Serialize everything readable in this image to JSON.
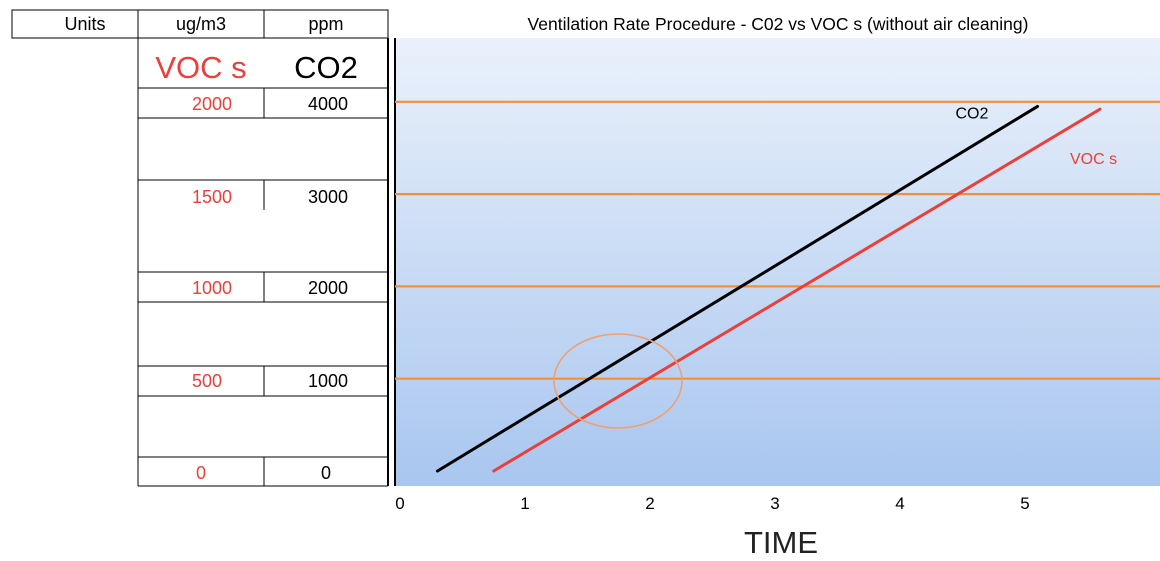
{
  "table": {
    "headers": [
      "Units",
      "ug/m3",
      "ppm"
    ],
    "voc_label": "VOC s",
    "co2_label": "CO2",
    "rows": [
      {
        "voc": "2000",
        "co2": "4000"
      },
      {
        "voc": "1500",
        "co2": "3000"
      },
      {
        "voc": "1000",
        "co2": "2000"
      },
      {
        "voc": "500",
        "co2": "1000"
      },
      {
        "voc": "0",
        "co2": "0"
      }
    ]
  },
  "colors": {
    "voc": "#e8403a",
    "co2": "#000000",
    "gridline": "#f0913a",
    "plot_top": "#eaf1fb",
    "plot_bottom": "#a9c6ef",
    "highlight_circle": "#f0a070"
  },
  "chart_data": {
    "type": "line",
    "title": "Ventilation Rate Procedure - C02 vs VOC s (without air cleaning)",
    "xlabel": "TIME",
    "ylabel": "",
    "x_ticks": [
      "0",
      "1",
      "2",
      "3",
      "4",
      "5"
    ],
    "xlim": [
      0,
      6
    ],
    "ylim": [
      0,
      4000
    ],
    "gridlines_y_ppm": [
      1000,
      2000,
      3000,
      4000
    ],
    "grid": true,
    "legend": "inline labels at line ends",
    "series": [
      {
        "name": "CO2",
        "axis": "ppm",
        "x": [
          0.3,
          5.1
        ],
        "y": [
          0,
          3950
        ]
      },
      {
        "name": "VOC s",
        "axis": "ug/m3",
        "x": [
          0.75,
          5.6
        ],
        "y": [
          0,
          1960
        ]
      }
    ],
    "annotations": [
      "highlight circle around 1000 ppm crossing near TIME 1.5–2"
    ]
  }
}
